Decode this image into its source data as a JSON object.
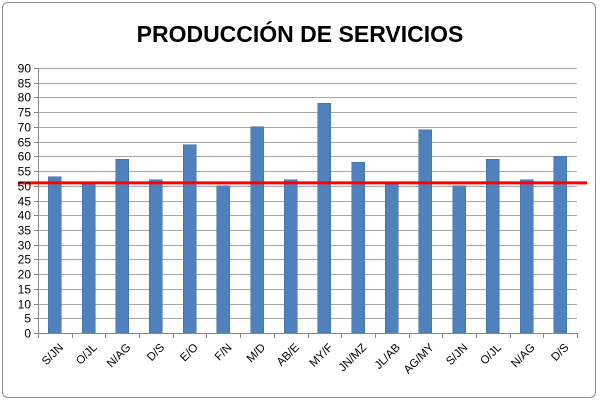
{
  "chart_data": {
    "type": "bar",
    "title": "PRODUCCIÓN DE SERVICIOS",
    "xlabel": "",
    "ylabel": "",
    "categories": [
      "S/JN",
      "O/JL",
      "N/AG",
      "D/S",
      "E/O",
      "F/N",
      "M/D",
      "AB/E",
      "MY/F",
      "JN/MZ",
      "JL/AB",
      "AG/MY",
      "S/JN",
      "O/JL",
      "N/AG",
      "D/S"
    ],
    "values": [
      53,
      51,
      59,
      52,
      64,
      50,
      70,
      52,
      78,
      58,
      51,
      69,
      50,
      59,
      52,
      60
    ],
    "ylim": [
      0,
      90
    ],
    "yticks": [
      0,
      5,
      10,
      15,
      20,
      25,
      30,
      35,
      40,
      45,
      50,
      55,
      60,
      65,
      70,
      75,
      80,
      85,
      90
    ],
    "reference_line": 51,
    "grid": true,
    "legend": "none",
    "colors": {
      "bar": "#4f81bd",
      "bar_edge": "#3a6a9f",
      "reference_line": "#ff0000",
      "grid": "#a6a6a6"
    }
  }
}
